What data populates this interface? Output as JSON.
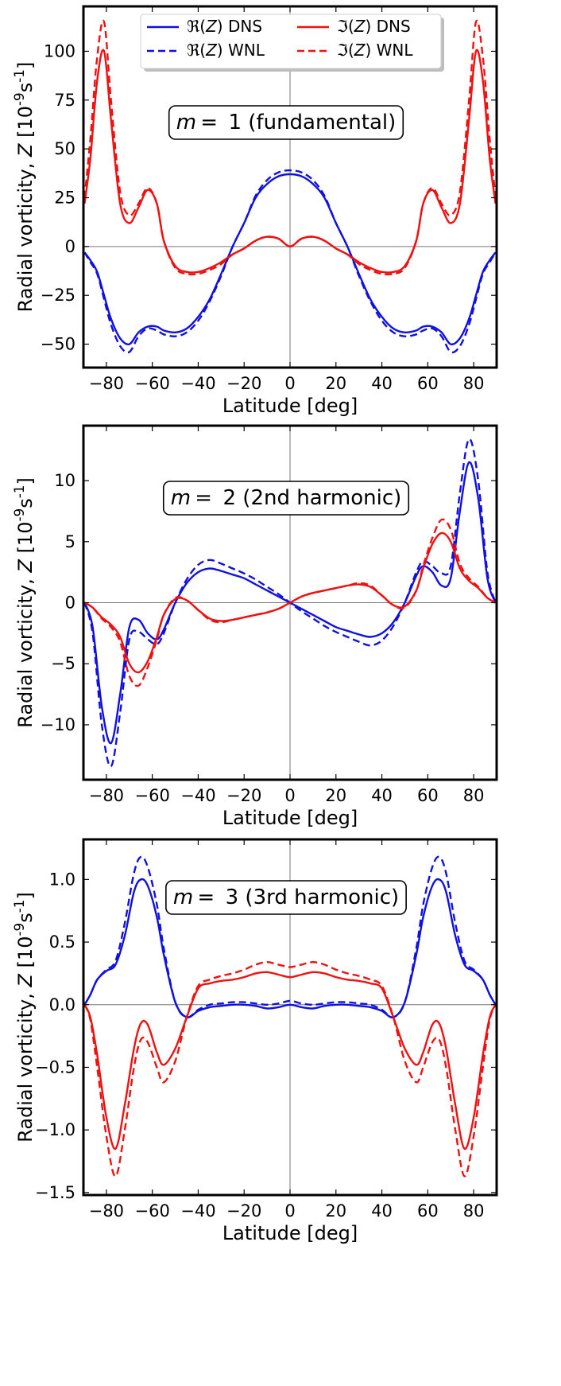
{
  "colors": {
    "real": "#1010e0",
    "imag": "#f01010",
    "axis": "#000000",
    "zero_line": "#777777"
  },
  "legend": {
    "position": "top-center",
    "entries": [
      {
        "label": "ℜ(Z) DNS",
        "color": "#1010e0",
        "dash": "solid"
      },
      {
        "label": "ℜ(Z) WNL",
        "color": "#1010e0",
        "dash": "dashed"
      },
      {
        "label": "ℑ(Z) DNS",
        "color": "#f01010",
        "dash": "solid"
      },
      {
        "label": "ℑ(Z) WNL",
        "color": "#f01010",
        "dash": "dashed"
      }
    ]
  },
  "chart_data": [
    {
      "type": "line",
      "annotation": "m = 1 (fundamental)",
      "xlabel": "Latitude [deg]",
      "ylabel": "Radial vorticity, Z [10⁻⁹s⁻¹]",
      "xlim": [
        -90,
        90
      ],
      "ylim": [
        -62,
        123
      ],
      "xticks": [
        -80,
        -60,
        -40,
        -20,
        0,
        20,
        40,
        60,
        80
      ],
      "yticks": [
        -50,
        -25,
        0,
        25,
        50,
        75,
        100
      ],
      "grid": false,
      "symmetry": {
        "real": "even",
        "imag": "even"
      },
      "x_half": [
        0,
        5,
        10,
        15,
        20,
        25,
        30,
        35,
        40,
        45,
        50,
        55,
        58,
        62,
        66,
        70,
        74,
        78,
        81,
        84,
        87,
        89.5
      ],
      "series": [
        {
          "name": "ℜ(Z) DNS",
          "key": "real",
          "style": "solid",
          "values": [
            37,
            36,
            32,
            25,
            12,
            0,
            -14,
            -27,
            -36,
            -42,
            -44,
            -43,
            -41,
            -41,
            -44,
            -50,
            -47,
            -37,
            -25,
            -13,
            -7,
            -3
          ]
        },
        {
          "name": "ℜ(Z) WNL",
          "key": "real",
          "style": "dashed",
          "values": [
            39,
            38,
            34,
            26,
            12,
            0,
            -15,
            -28,
            -38,
            -44,
            -46,
            -45,
            -43,
            -42,
            -46,
            -54,
            -51,
            -40,
            -27,
            -14,
            -8,
            -3
          ]
        },
        {
          "name": "ℑ(Z) DNS",
          "key": "imag",
          "style": "solid",
          "values": [
            0,
            4,
            5,
            3,
            -1,
            -4,
            -8,
            -11,
            -13,
            -13,
            -10,
            3,
            22,
            29,
            20,
            12,
            22,
            65,
            100,
            85,
            45,
            22
          ]
        },
        {
          "name": "ℑ(Z) WNL",
          "key": "imag",
          "style": "dashed",
          "values": [
            0,
            4,
            5,
            3,
            -1,
            -4,
            -9,
            -12,
            -14,
            -14,
            -11,
            3,
            22,
            30,
            22,
            16,
            28,
            75,
            115,
            97,
            55,
            25
          ]
        }
      ]
    },
    {
      "type": "line",
      "annotation": "m = 2 (2nd harmonic)",
      "xlabel": "Latitude [deg]",
      "ylabel": "Radial vorticity, Z [10⁻⁹s⁻¹]",
      "xlim": [
        -90,
        90
      ],
      "ylim": [
        -14.5,
        14.5
      ],
      "xticks": [
        -80,
        -60,
        -40,
        -20,
        0,
        20,
        40,
        60,
        80
      ],
      "yticks": [
        -10,
        -5,
        0,
        5,
        10
      ],
      "grid": false,
      "symmetry": {
        "real": "odd",
        "imag": "odd"
      },
      "x_half": [
        0,
        5,
        10,
        15,
        20,
        25,
        30,
        35,
        40,
        45,
        50,
        55,
        58,
        62,
        66,
        70,
        74,
        78,
        82,
        86,
        89.5
      ],
      "series": [
        {
          "name": "ℜ(Z) DNS",
          "key": "real",
          "style": "solid",
          "values": [
            0,
            -0.5,
            -1.0,
            -1.5,
            -2.0,
            -2.3,
            -2.6,
            -2.8,
            -2.5,
            -1.6,
            0,
            2.2,
            3.0,
            2.5,
            1.4,
            2.0,
            7.5,
            11.5,
            8.5,
            2.0,
            0
          ]
        },
        {
          "name": "ℜ(Z) WNL",
          "key": "real",
          "style": "dashed",
          "values": [
            0,
            -0.7,
            -1.3,
            -1.9,
            -2.4,
            -2.8,
            -3.2,
            -3.5,
            -3.1,
            -1.9,
            0,
            2.5,
            3.4,
            3.0,
            2.4,
            3.0,
            9.0,
            13.4,
            10.0,
            2.5,
            0
          ]
        },
        {
          "name": "ℑ(Z) DNS",
          "key": "imag",
          "style": "solid",
          "values": [
            0,
            0.5,
            0.8,
            1.0,
            1.2,
            1.4,
            1.5,
            1.3,
            0.6,
            -0.2,
            -0.3,
            1.0,
            2.8,
            4.8,
            5.7,
            5.0,
            2.8,
            1.8,
            1.2,
            0.4,
            0
          ]
        },
        {
          "name": "ℑ(Z) WNL",
          "key": "imag",
          "style": "dashed",
          "values": [
            0,
            0.5,
            0.8,
            1.0,
            1.2,
            1.4,
            1.6,
            1.4,
            0.6,
            -0.2,
            -0.4,
            1.0,
            3.0,
            5.3,
            6.8,
            6.0,
            3.2,
            2.0,
            1.3,
            0.4,
            0
          ]
        }
      ]
    },
    {
      "type": "line",
      "annotation": "m = 3 (3rd harmonic)",
      "xlabel": "Latitude [deg]",
      "ylabel": "Radial vorticity, Z [10⁻⁹s⁻¹]",
      "xlim": [
        -90,
        90
      ],
      "ylim": [
        -1.52,
        1.32
      ],
      "xticks": [
        -80,
        -60,
        -40,
        -20,
        0,
        20,
        40,
        60,
        80
      ],
      "yticks": [
        -1.5,
        -1.0,
        -0.5,
        0.0,
        0.5,
        1.0
      ],
      "grid": false,
      "symmetry": {
        "real": "even",
        "imag": "even"
      },
      "x_half": [
        0,
        5,
        10,
        15,
        20,
        25,
        30,
        35,
        40,
        45,
        50,
        55,
        58,
        62,
        65,
        68,
        72,
        76,
        80,
        84,
        87,
        89.5
      ],
      "series": [
        {
          "name": "ℜ(Z) DNS",
          "key": "real",
          "style": "solid",
          "values": [
            0,
            -0.02,
            -0.03,
            -0.01,
            0,
            0,
            -0.01,
            -0.02,
            -0.05,
            -0.1,
            0.02,
            0.4,
            0.7,
            0.95,
            1.0,
            0.9,
            0.55,
            0.32,
            0.27,
            0.2,
            0.08,
            0
          ]
        },
        {
          "name": "ℜ(Z) WNL",
          "key": "real",
          "style": "dashed",
          "values": [
            0.03,
            0.01,
            0,
            0.01,
            0.02,
            0.02,
            0.01,
            0,
            -0.04,
            -0.1,
            0.02,
            0.45,
            0.8,
            1.1,
            1.18,
            1.05,
            0.65,
            0.35,
            0.28,
            0.2,
            0.08,
            0
          ]
        },
        {
          "name": "ℑ(Z) DNS",
          "key": "imag",
          "style": "solid",
          "values": [
            0.22,
            0.24,
            0.26,
            0.25,
            0.22,
            0.2,
            0.19,
            0.17,
            0.13,
            -0.1,
            -0.35,
            -0.48,
            -0.38,
            -0.16,
            -0.15,
            -0.35,
            -0.8,
            -1.15,
            -0.9,
            -0.4,
            -0.1,
            0
          ]
        },
        {
          "name": "ℑ(Z) WNL",
          "key": "imag",
          "style": "dashed",
          "values": [
            0.3,
            0.32,
            0.34,
            0.32,
            0.28,
            0.25,
            0.23,
            0.2,
            0.15,
            -0.1,
            -0.45,
            -0.62,
            -0.5,
            -0.3,
            -0.28,
            -0.5,
            -1.0,
            -1.37,
            -1.05,
            -0.5,
            -0.12,
            0
          ]
        }
      ]
    }
  ]
}
